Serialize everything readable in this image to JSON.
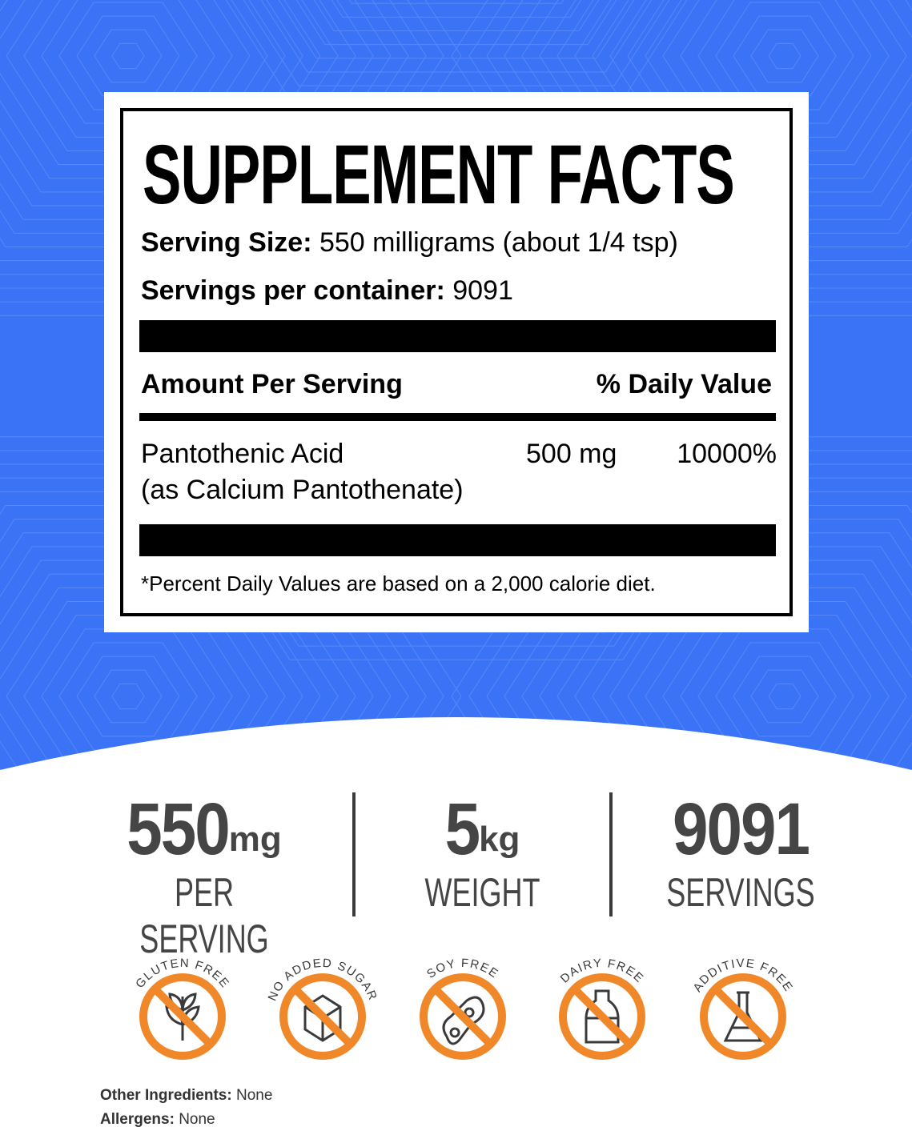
{
  "colors": {
    "background_blue": "#3b73f6",
    "accent_orange": "#f0882a",
    "stat_gray": "#454545"
  },
  "facts": {
    "title": "SUPPLEMENT FACTS",
    "serving_size_label": "Serving Size:",
    "serving_size_value": "550 milligrams (about 1/4 tsp)",
    "servings_label": "Servings per container:",
    "servings_value": "9091",
    "amount_header": "Amount Per Serving",
    "dv_header": "% Daily Value",
    "ingredient_name": "Pantothenic Acid",
    "ingredient_form": "(as Calcium Pantothenate)",
    "ingredient_amount": "500 mg",
    "ingredient_dv": "10000%",
    "footnote": "*Percent Daily Values are based on a 2,000 calorie diet."
  },
  "stats": [
    {
      "value": "550",
      "unit": "mg",
      "label": "PER SERVING"
    },
    {
      "value": "5",
      "unit": "kg",
      "label": "WEIGHT"
    },
    {
      "value": "9091",
      "unit": "",
      "label": "SERVINGS"
    }
  ],
  "badges": [
    {
      "label": "GLUTEN FREE",
      "icon": "wheat-icon"
    },
    {
      "label": "NO ADDED SUGAR",
      "icon": "sugar-cube-icon"
    },
    {
      "label": "SOY FREE",
      "icon": "soybean-icon"
    },
    {
      "label": "DAIRY FREE",
      "icon": "milk-bottle-icon"
    },
    {
      "label": "ADDITIVE FREE",
      "icon": "flask-icon"
    }
  ],
  "other_ingredients": {
    "label": "Other Ingredients:",
    "value": "None"
  },
  "allergens": {
    "label": "Allergens:",
    "value": "None"
  }
}
